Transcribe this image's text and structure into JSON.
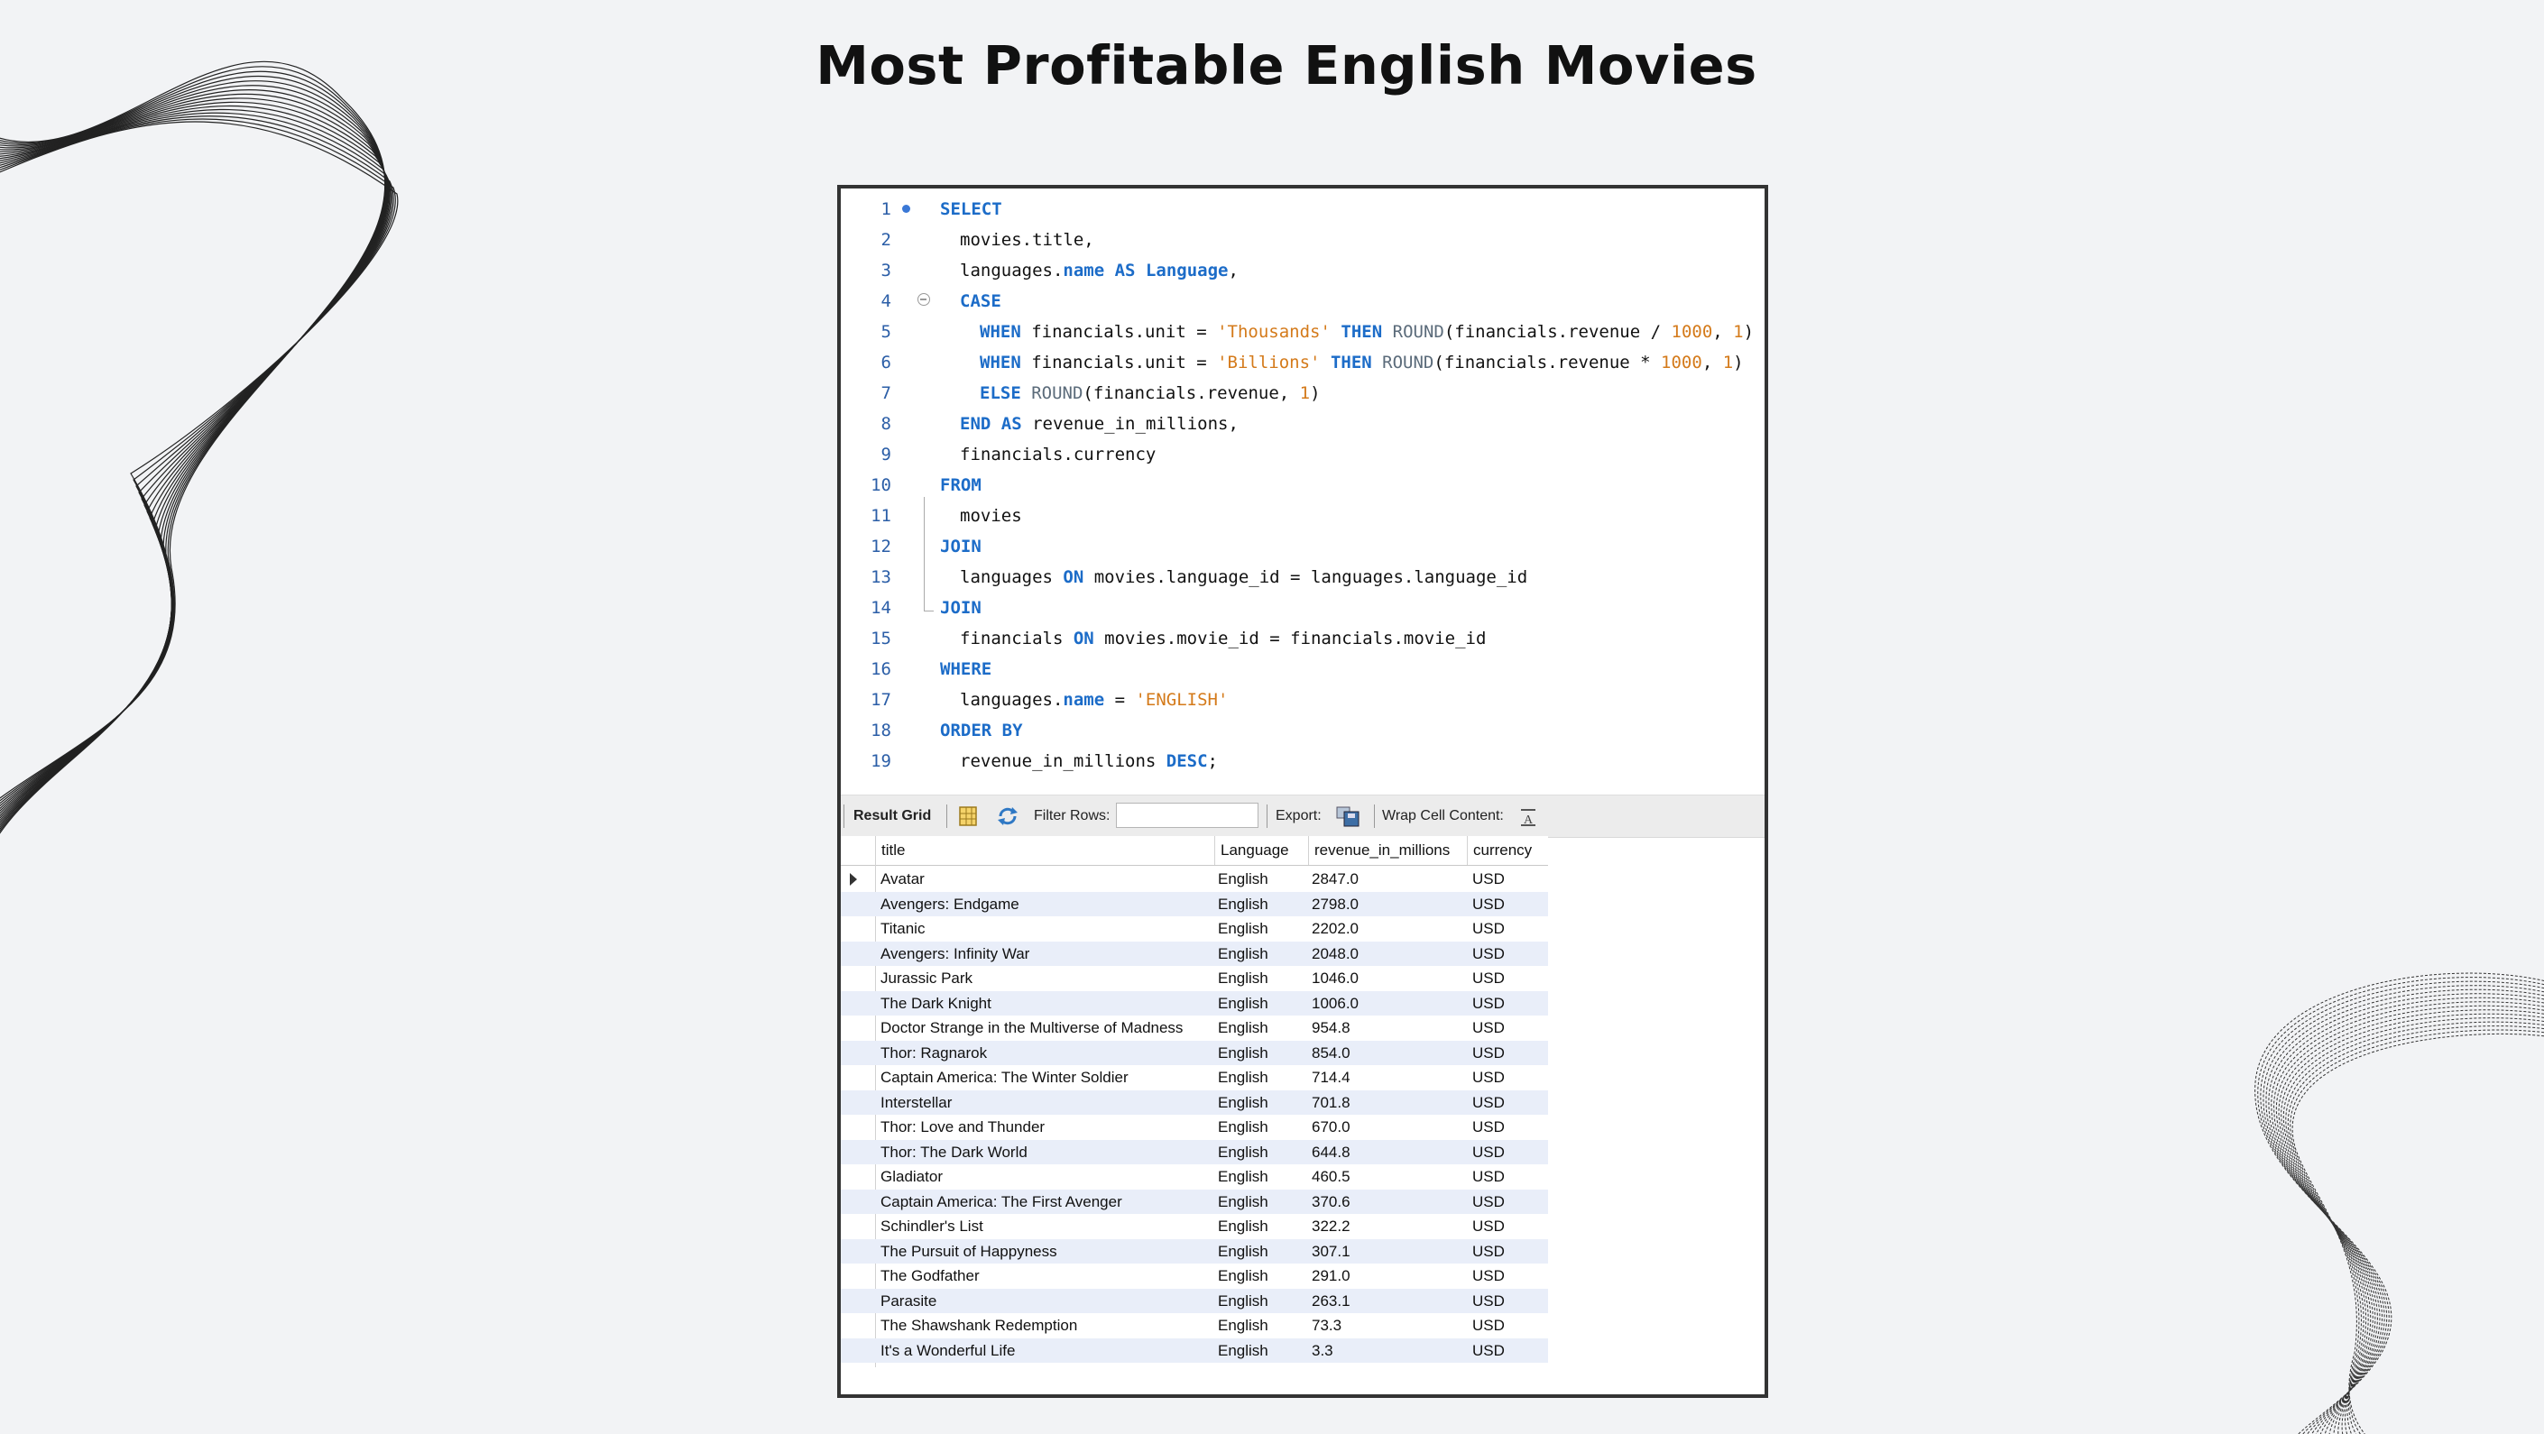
{
  "title": "Most Profitable English Movies",
  "sql_lines": [
    {
      "n": "1",
      "parts": [
        [
          "kw",
          "SELECT"
        ]
      ],
      "indent": 0
    },
    {
      "n": "2",
      "parts": [
        [
          "t",
          "movies.title,"
        ]
      ],
      "indent": 1
    },
    {
      "n": "3",
      "parts": [
        [
          "t",
          "languages."
        ],
        [
          "kw",
          "name"
        ],
        [
          "t",
          " "
        ],
        [
          "kw",
          "AS"
        ],
        [
          "t",
          " "
        ],
        [
          "kw",
          "Language"
        ],
        [
          "t",
          ","
        ]
      ],
      "indent": 1
    },
    {
      "n": "4",
      "parts": [
        [
          "kw",
          "CASE"
        ]
      ],
      "indent": 1
    },
    {
      "n": "5",
      "parts": [
        [
          "kw",
          "WHEN"
        ],
        [
          "t",
          " financials.unit = "
        ],
        [
          "str",
          "'Thousands'"
        ],
        [
          "t",
          " "
        ],
        [
          "kw",
          "THEN"
        ],
        [
          "t",
          " "
        ],
        [
          "fn",
          "ROUND"
        ],
        [
          "t",
          "(financials.revenue / "
        ],
        [
          "num",
          "1000"
        ],
        [
          "t",
          ", "
        ],
        [
          "num",
          "1"
        ],
        [
          "t",
          ")"
        ]
      ],
      "indent": 2
    },
    {
      "n": "6",
      "parts": [
        [
          "kw",
          "WHEN"
        ],
        [
          "t",
          " financials.unit = "
        ],
        [
          "str",
          "'Billions'"
        ],
        [
          "t",
          " "
        ],
        [
          "kw",
          "THEN"
        ],
        [
          "t",
          " "
        ],
        [
          "fn",
          "ROUND"
        ],
        [
          "t",
          "(financials.revenue * "
        ],
        [
          "num",
          "1000"
        ],
        [
          "t",
          ", "
        ],
        [
          "num",
          "1"
        ],
        [
          "t",
          ")"
        ]
      ],
      "indent": 2
    },
    {
      "n": "7",
      "parts": [
        [
          "kw",
          "ELSE"
        ],
        [
          "t",
          " "
        ],
        [
          "fn",
          "ROUND"
        ],
        [
          "t",
          "(financials.revenue, "
        ],
        [
          "num",
          "1"
        ],
        [
          "t",
          ")"
        ]
      ],
      "indent": 2
    },
    {
      "n": "8",
      "parts": [
        [
          "kw",
          "END"
        ],
        [
          "t",
          " "
        ],
        [
          "kw",
          "AS"
        ],
        [
          "t",
          " revenue_in_millions,"
        ]
      ],
      "indent": 1
    },
    {
      "n": "9",
      "parts": [
        [
          "t",
          "financials.currency"
        ]
      ],
      "indent": 1
    },
    {
      "n": "10",
      "parts": [
        [
          "kw",
          "FROM"
        ]
      ],
      "indent": 0
    },
    {
      "n": "11",
      "parts": [
        [
          "t",
          "movies"
        ]
      ],
      "indent": 1
    },
    {
      "n": "12",
      "parts": [
        [
          "kw",
          "JOIN"
        ]
      ],
      "indent": 0
    },
    {
      "n": "13",
      "parts": [
        [
          "t",
          "languages "
        ],
        [
          "kw",
          "ON"
        ],
        [
          "t",
          " movies.language_id = languages.language_id"
        ]
      ],
      "indent": 1
    },
    {
      "n": "14",
      "parts": [
        [
          "kw",
          "JOIN"
        ]
      ],
      "indent": 0
    },
    {
      "n": "15",
      "parts": [
        [
          "t",
          "financials "
        ],
        [
          "kw",
          "ON"
        ],
        [
          "t",
          " movies.movie_id = financials.movie_id"
        ]
      ],
      "indent": 1
    },
    {
      "n": "16",
      "parts": [
        [
          "kw",
          "WHERE"
        ]
      ],
      "indent": 0
    },
    {
      "n": "17",
      "parts": [
        [
          "t",
          "languages."
        ],
        [
          "kw",
          "name"
        ],
        [
          "t",
          " = "
        ],
        [
          "str",
          "'ENGLISH'"
        ]
      ],
      "indent": 1
    },
    {
      "n": "18",
      "parts": [
        [
          "kw",
          "ORDER BY"
        ]
      ],
      "indent": 0
    },
    {
      "n": "19",
      "parts": [
        [
          "t",
          "revenue_in_millions "
        ],
        [
          "kw",
          "DESC"
        ],
        [
          "t",
          ";"
        ]
      ],
      "indent": 1
    }
  ],
  "toolbar": {
    "result_grid": "Result Grid",
    "filter_rows": "Filter Rows:",
    "filter_value": "",
    "export": "Export:",
    "wrap": "Wrap Cell Content:"
  },
  "grid": {
    "columns": [
      "title",
      "Language",
      "revenue_in_millions",
      "currency"
    ],
    "rows": [
      [
        "Avatar",
        "English",
        "2847.0",
        "USD"
      ],
      [
        "Avengers: Endgame",
        "English",
        "2798.0",
        "USD"
      ],
      [
        "Titanic",
        "English",
        "2202.0",
        "USD"
      ],
      [
        "Avengers: Infinity War",
        "English",
        "2048.0",
        "USD"
      ],
      [
        "Jurassic Park",
        "English",
        "1046.0",
        "USD"
      ],
      [
        "The Dark Knight",
        "English",
        "1006.0",
        "USD"
      ],
      [
        "Doctor Strange in the Multiverse of Madness",
        "English",
        "954.8",
        "USD"
      ],
      [
        "Thor: Ragnarok",
        "English",
        "854.0",
        "USD"
      ],
      [
        "Captain America: The Winter Soldier",
        "English",
        "714.4",
        "USD"
      ],
      [
        "Interstellar",
        "English",
        "701.8",
        "USD"
      ],
      [
        "Thor: Love and Thunder",
        "English",
        "670.0",
        "USD"
      ],
      [
        "Thor: The Dark World",
        "English",
        "644.8",
        "USD"
      ],
      [
        "Gladiator",
        "English",
        "460.5",
        "USD"
      ],
      [
        "Captain America: The First Avenger",
        "English",
        "370.6",
        "USD"
      ],
      [
        "Schindler's List",
        "English",
        "322.2",
        "USD"
      ],
      [
        "The Pursuit of Happyness",
        "English",
        "307.1",
        "USD"
      ],
      [
        "The Godfather",
        "English",
        "291.0",
        "USD"
      ],
      [
        "Parasite",
        "English",
        "263.1",
        "USD"
      ],
      [
        "The Shawshank Redemption",
        "English",
        "73.3",
        "USD"
      ],
      [
        "It's a Wonderful Life",
        "English",
        "3.3",
        "USD"
      ]
    ]
  },
  "colors": {
    "keyword": "#1c6cc8",
    "string": "#d47a1a",
    "row_alt": "#e9eef9",
    "background": "#f2f3f5"
  }
}
